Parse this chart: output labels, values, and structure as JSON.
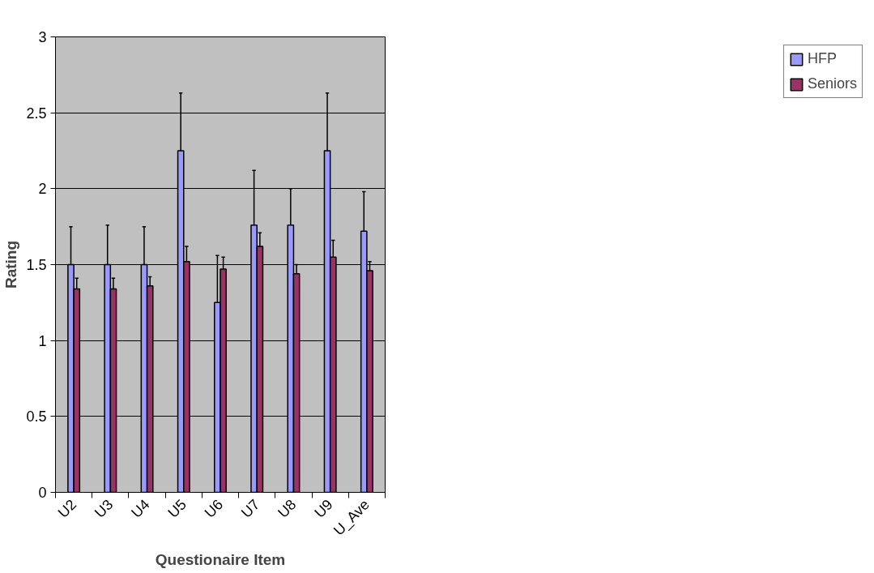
{
  "chart_data": {
    "type": "bar",
    "xlabel": "Questionaire Item",
    "ylabel": "Rating",
    "categories": [
      "U2",
      "U3",
      "U4",
      "U5",
      "U6",
      "U7",
      "U8",
      "U9",
      "U_Ave"
    ],
    "series": [
      {
        "name": "HFP",
        "color": "#9999ff",
        "values": [
          1.5,
          1.5,
          1.5,
          2.25,
          1.25,
          1.76,
          1.76,
          2.25,
          1.72
        ],
        "errors": [
          [
            1.5,
            1.75
          ],
          [
            1.5,
            1.76
          ],
          [
            1.5,
            1.75
          ],
          [
            2.25,
            2.63
          ],
          [
            1.25,
            1.56
          ],
          [
            1.76,
            2.12
          ],
          [
            1.76,
            2.0
          ],
          [
            2.25,
            2.63
          ],
          [
            1.72,
            1.98
          ]
        ]
      },
      {
        "name": "Seniors",
        "color": "#993366",
        "values": [
          1.34,
          1.34,
          1.36,
          1.52,
          1.47,
          1.62,
          1.44,
          1.55,
          1.46
        ],
        "errors": [
          [
            1.34,
            1.41
          ],
          [
            1.34,
            1.41
          ],
          [
            1.36,
            1.42
          ],
          [
            1.52,
            1.62
          ],
          [
            1.47,
            1.55
          ],
          [
            1.62,
            1.71
          ],
          [
            1.44,
            1.5
          ],
          [
            1.55,
            1.66
          ],
          [
            1.46,
            1.52
          ]
        ]
      }
    ],
    "ylim": [
      0,
      3
    ],
    "yticks": [
      0,
      0.5,
      1,
      1.5,
      2,
      2.5,
      3
    ],
    "grid": "y",
    "legend": "right"
  }
}
